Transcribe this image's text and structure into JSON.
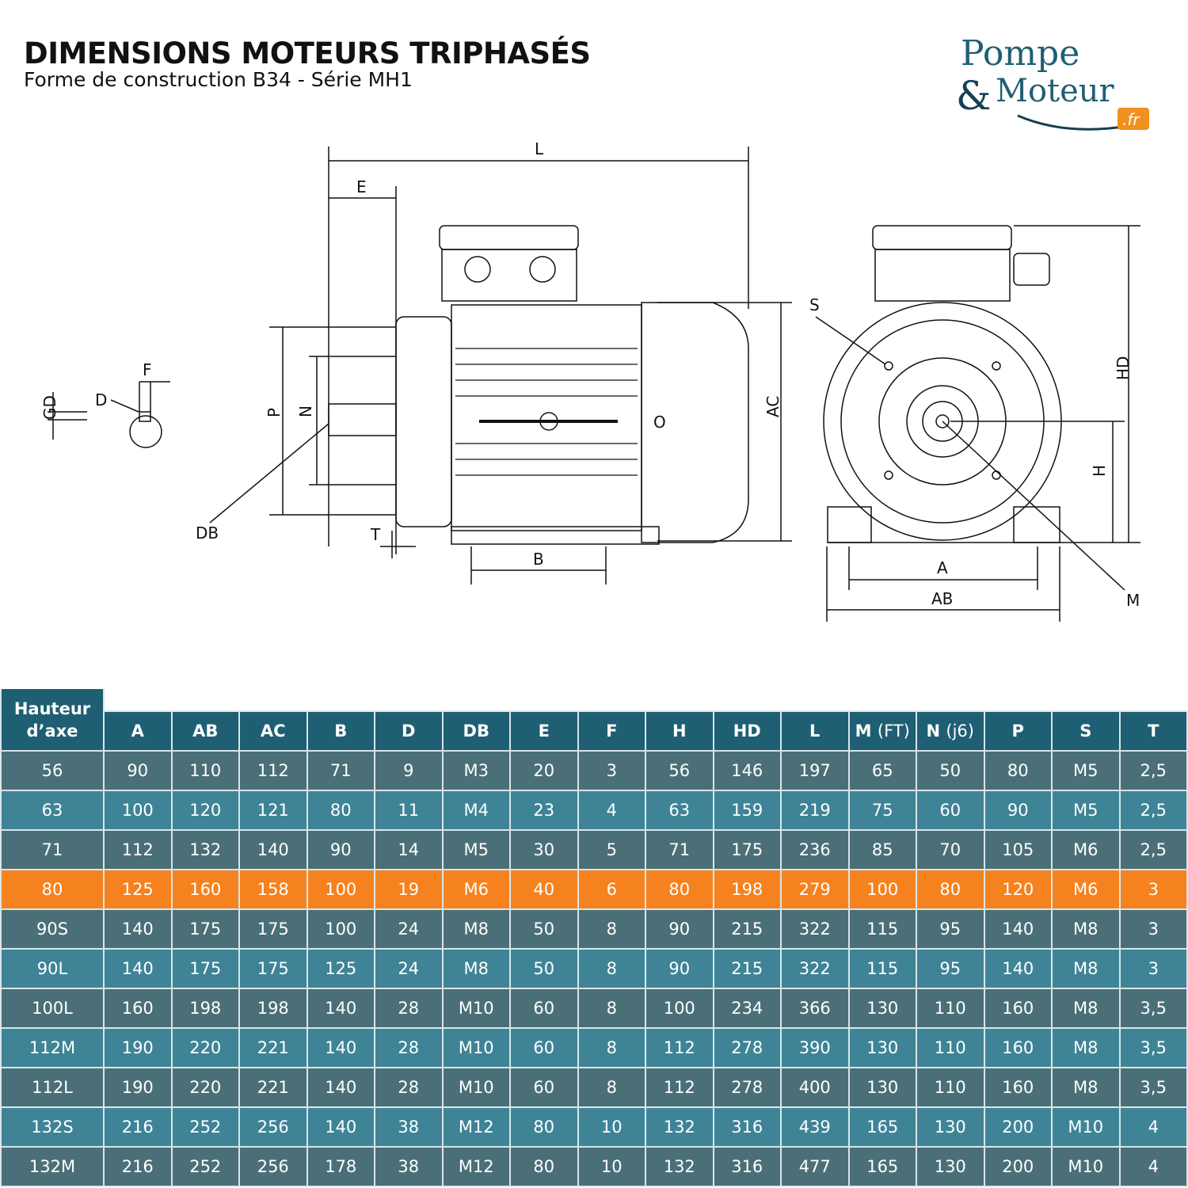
{
  "header": {
    "title": "DIMENSIONS MOTEURS TRIPHASÉS",
    "subtitle": "Forme de construction B34 - Série MH1"
  },
  "logo": {
    "line1": "Pompe",
    "line2": "&Moteur",
    "badge": ".fr",
    "colors": {
      "text": "#1f5f73",
      "badge": "#f0901e"
    }
  },
  "diagram": {
    "labels": [
      "L",
      "E",
      "F",
      "D",
      "GD",
      "P",
      "N",
      "DB",
      "T",
      "B",
      "AC",
      "O",
      "S",
      "HD",
      "H",
      "A",
      "AB",
      "M"
    ]
  },
  "table": {
    "colors": {
      "header": "#1f5f73",
      "row_odd": "#4b6f78",
      "row_even": "#3e8496",
      "highlight": "#f5821f"
    },
    "first_header": [
      "Hauteur",
      "d’axe"
    ],
    "columns": [
      [
        "A",
        ""
      ],
      [
        "AB",
        ""
      ],
      [
        "AC",
        ""
      ],
      [
        "B",
        ""
      ],
      [
        "D",
        ""
      ],
      [
        "DB",
        ""
      ],
      [
        "E",
        ""
      ],
      [
        "F",
        ""
      ],
      [
        "H",
        ""
      ],
      [
        "HD",
        ""
      ],
      [
        "L",
        ""
      ],
      [
        "M",
        "(FT)"
      ],
      [
        "N",
        "(j6)"
      ],
      [
        "P",
        ""
      ],
      [
        "S",
        ""
      ],
      [
        "T",
        ""
      ]
    ],
    "highlighted_row": "80",
    "rows": [
      [
        "56",
        "90",
        "110",
        "112",
        "71",
        "9",
        "M3",
        "20",
        "3",
        "56",
        "146",
        "197",
        "65",
        "50",
        "80",
        "M5",
        "2,5"
      ],
      [
        "63",
        "100",
        "120",
        "121",
        "80",
        "11",
        "M4",
        "23",
        "4",
        "63",
        "159",
        "219",
        "75",
        "60",
        "90",
        "M5",
        "2,5"
      ],
      [
        "71",
        "112",
        "132",
        "140",
        "90",
        "14",
        "M5",
        "30",
        "5",
        "71",
        "175",
        "236",
        "85",
        "70",
        "105",
        "M6",
        "2,5"
      ],
      [
        "80",
        "125",
        "160",
        "158",
        "100",
        "19",
        "M6",
        "40",
        "6",
        "80",
        "198",
        "279",
        "100",
        "80",
        "120",
        "M6",
        "3"
      ],
      [
        "90S",
        "140",
        "175",
        "175",
        "100",
        "24",
        "M8",
        "50",
        "8",
        "90",
        "215",
        "322",
        "115",
        "95",
        "140",
        "M8",
        "3"
      ],
      [
        "90L",
        "140",
        "175",
        "175",
        "125",
        "24",
        "M8",
        "50",
        "8",
        "90",
        "215",
        "322",
        "115",
        "95",
        "140",
        "M8",
        "3"
      ],
      [
        "100L",
        "160",
        "198",
        "198",
        "140",
        "28",
        "M10",
        "60",
        "8",
        "100",
        "234",
        "366",
        "130",
        "110",
        "160",
        "M8",
        "3,5"
      ],
      [
        "112M",
        "190",
        "220",
        "221",
        "140",
        "28",
        "M10",
        "60",
        "8",
        "112",
        "278",
        "390",
        "130",
        "110",
        "160",
        "M8",
        "3,5"
      ],
      [
        "112L",
        "190",
        "220",
        "221",
        "140",
        "28",
        "M10",
        "60",
        "8",
        "112",
        "278",
        "400",
        "130",
        "110",
        "160",
        "M8",
        "3,5"
      ],
      [
        "132S",
        "216",
        "252",
        "256",
        "140",
        "38",
        "M12",
        "80",
        "10",
        "132",
        "316",
        "439",
        "165",
        "130",
        "200",
        "M10",
        "4"
      ],
      [
        "132M",
        "216",
        "252",
        "256",
        "178",
        "38",
        "M12",
        "80",
        "10",
        "132",
        "316",
        "477",
        "165",
        "130",
        "200",
        "M10",
        "4"
      ]
    ]
  }
}
